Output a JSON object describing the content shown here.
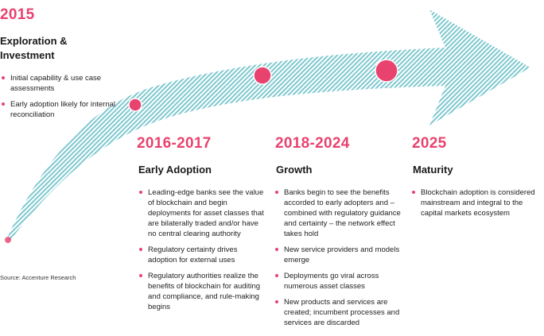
{
  "stages": [
    {
      "year": "2015",
      "phase": "Exploration & Investment",
      "bullets": [
        "Initial capability & use case assessments",
        "Early adoption likely for internal reconciliation"
      ]
    },
    {
      "year": "2016-2017",
      "phase": "Early Adoption",
      "bullets": [
        "Leading-edge banks see the value of blockchain and begin deployments for asset classes that are bilaterally traded and/or have no central clearing authority",
        "Regulatory certainty drives adoption for external uses",
        "Regulatory authorities realize the benefits of blockchain for auditing and compliance, and rule-making begins"
      ]
    },
    {
      "year": "2018-2024",
      "phase": "Growth",
      "bullets": [
        "Banks begin to see the benefits accorded to early adopters and – combined with regulatory guidance and certainty – the network effect takes hold",
        "New service providers and models emerge",
        "Deployments go viral across numerous asset classes",
        "New products and services are created; incumbent processes and services are discarded"
      ]
    },
    {
      "year": "2025",
      "phase": "Maturity",
      "bullets": [
        "Blockchain adoption is considered mainstream and integral to the capital markets ecosystem"
      ]
    }
  ],
  "source": "Source: Accenture Research",
  "colors": {
    "accent": "#e8436f",
    "arrow_stripe": "#7ec8cf"
  }
}
